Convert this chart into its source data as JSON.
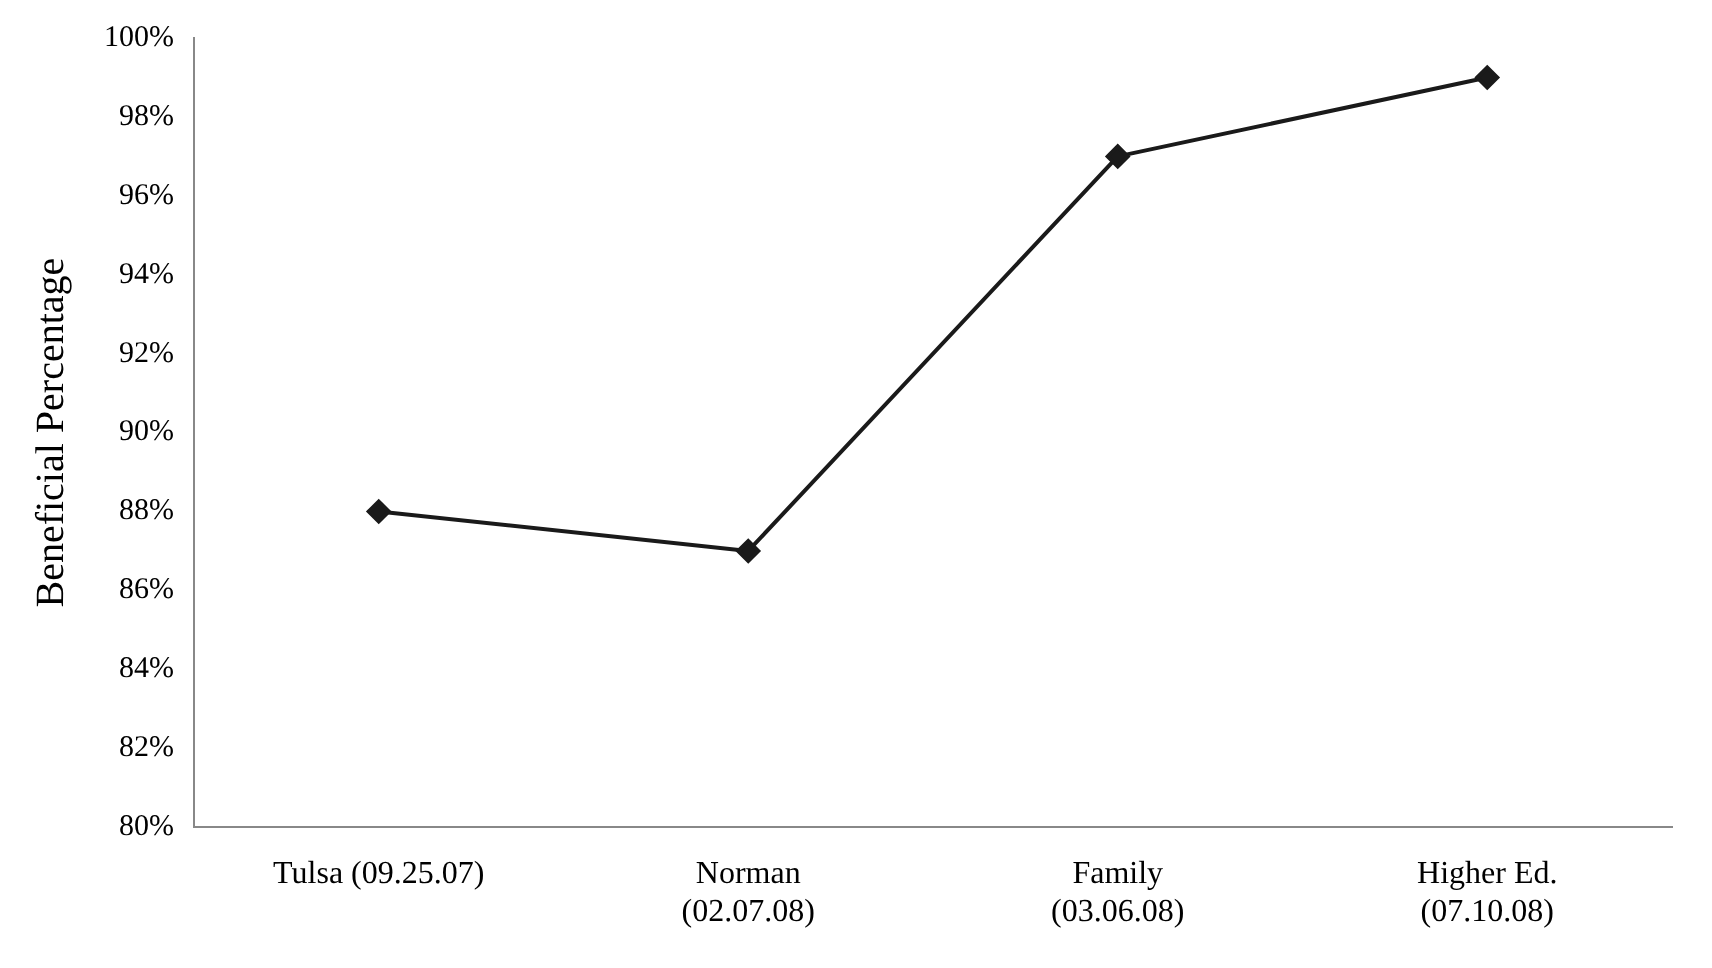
{
  "chart_data": {
    "type": "line",
    "ylabel": "Beneficial Percentage",
    "categories": [
      "Tulsa (09.25.07)",
      "Norman\n(02.07.08)",
      "Family\n(03.06.08)",
      "Higher Ed.\n(07.10.08)"
    ],
    "series": [
      {
        "color": "#1a1a1a",
        "values": [
          88,
          87,
          97,
          99
        ]
      }
    ],
    "ylim": [
      80,
      100
    ],
    "yticks": [
      {
        "value": 80,
        "label": "80%"
      },
      {
        "value": 82,
        "label": "82%"
      },
      {
        "value": 84,
        "label": "84%"
      },
      {
        "value": 86,
        "label": "86%"
      },
      {
        "value": 88,
        "label": "88%"
      },
      {
        "value": 90,
        "label": "90%"
      },
      {
        "value": 92,
        "label": "92%"
      },
      {
        "value": 94,
        "label": "94%"
      },
      {
        "value": 96,
        "label": "96%"
      },
      {
        "value": 98,
        "label": "98%"
      },
      {
        "value": 100,
        "label": "100%"
      }
    ],
    "grid": false,
    "legend": false,
    "marker": "diamond",
    "line_style": "solid"
  }
}
